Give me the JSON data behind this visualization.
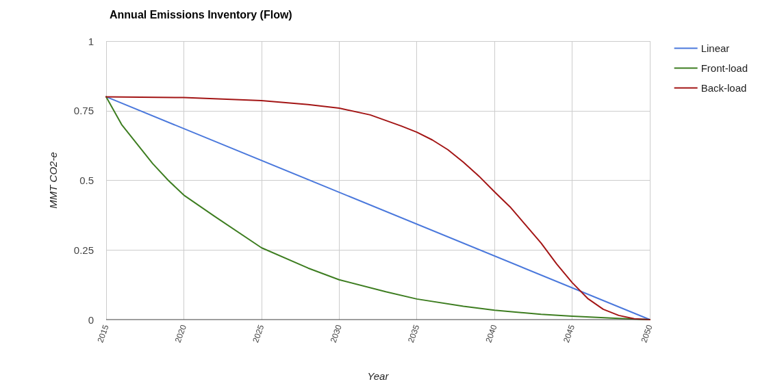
{
  "chart_data": {
    "type": "line",
    "title": "Annual Emissions Inventory (Flow)",
    "xlabel": "Year",
    "ylabel": "MMT CO2-e",
    "xlim": [
      2015,
      2050
    ],
    "xticks": [
      2015,
      2020,
      2025,
      2030,
      2035,
      2040,
      2045,
      2050
    ],
    "ylim": [
      0,
      1
    ],
    "yticks": [
      0,
      0.25,
      0.5,
      0.75,
      1
    ],
    "grid": true,
    "legend": "top right",
    "marker": "none",
    "line_style": "solid",
    "series": [
      {
        "name": "Linear",
        "color": "#4a78dc",
        "x": [
          2015,
          2050
        ],
        "values": [
          0.8,
          0
        ]
      },
      {
        "name": "Front-load",
        "color": "#3d7d20",
        "x": [
          2015,
          2016,
          2017,
          2018,
          2019,
          2020,
          2022,
          2025,
          2028,
          2030,
          2033,
          2035,
          2038,
          2040,
          2043,
          2045,
          2048,
          2050
        ],
        "values": [
          0.8,
          0.7,
          0.63,
          0.56,
          0.5,
          0.447,
          0.37,
          0.258,
          0.185,
          0.143,
          0.1,
          0.074,
          0.048,
          0.034,
          0.019,
          0.012,
          0.004,
          0
        ]
      },
      {
        "name": "Back-load",
        "color": "#a31515",
        "x": [
          2015,
          2020,
          2025,
          2028,
          2030,
          2032,
          2034,
          2035,
          2036,
          2037,
          2038,
          2039,
          2040,
          2041,
          2042,
          2043,
          2044,
          2045,
          2046,
          2047,
          2048,
          2049,
          2050
        ],
        "values": [
          0.8,
          0.797,
          0.786,
          0.772,
          0.759,
          0.735,
          0.695,
          0.673,
          0.645,
          0.61,
          0.565,
          0.515,
          0.459,
          0.405,
          0.34,
          0.275,
          0.2,
          0.133,
          0.076,
          0.037,
          0.015,
          0.003,
          0
        ]
      }
    ]
  }
}
